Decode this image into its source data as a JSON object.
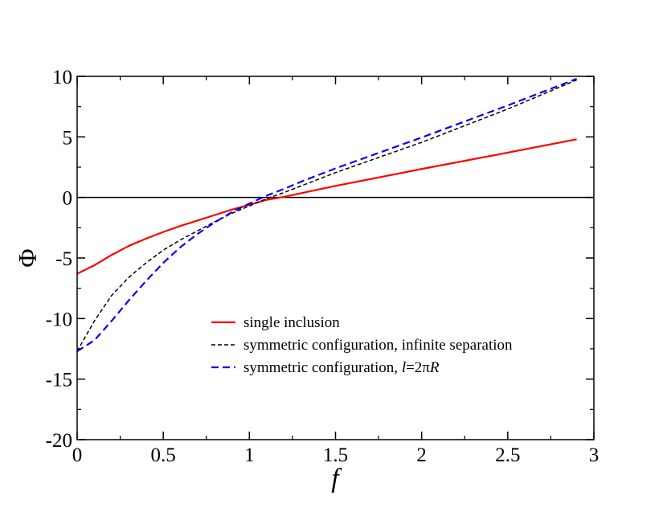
{
  "chart_data": {
    "type": "line",
    "title": "",
    "xlabel": "f",
    "ylabel": "Φ",
    "xlim": [
      0,
      3
    ],
    "ylim": [
      -20,
      10
    ],
    "xticks": [
      0,
      0.5,
      1,
      1.5,
      2,
      2.5,
      3
    ],
    "xtick_labels": [
      "0",
      "0.5",
      "1",
      "1.5",
      "2",
      "2.5",
      "3"
    ],
    "yticks": [
      10,
      5,
      0,
      -5,
      -10,
      -15,
      -20
    ],
    "ytick_labels": [
      "10",
      "5",
      "0",
      "-5",
      "-10",
      "-15",
      "-20"
    ],
    "grid": false,
    "legend_position": "lower-center",
    "reference_line": {
      "y": 0,
      "color": "#000000"
    },
    "series": [
      {
        "name": "single inclusion",
        "label_parts": [
          {
            "text": "single inclusion",
            "italic": false
          }
        ],
        "color": "#ff0000",
        "style": "solid",
        "x": [
          0,
          0.1,
          0.2,
          0.3,
          0.4,
          0.5,
          0.6,
          0.7,
          0.8,
          0.9,
          1.0,
          1.1,
          1.2,
          1.5,
          2.0,
          2.5,
          2.9
        ],
        "y": [
          -6.3,
          -5.6,
          -4.75,
          -4.0,
          -3.4,
          -2.85,
          -2.35,
          -1.9,
          -1.45,
          -1.0,
          -0.6,
          -0.2,
          0.05,
          0.95,
          2.35,
          3.7,
          4.8
        ]
      },
      {
        "name": "symmetric configuration, infinite separation",
        "label_parts": [
          {
            "text": "symmetric configuration, infinite separation",
            "italic": false
          }
        ],
        "color": "#000000",
        "style": "dashed-fine",
        "x": [
          0,
          0.1,
          0.2,
          0.3,
          0.4,
          0.5,
          0.6,
          0.7,
          0.8,
          0.9,
          1.0,
          1.1,
          1.2,
          1.3,
          1.5,
          2.0,
          2.5,
          2.9
        ],
        "y": [
          -12.7,
          -10.2,
          -8.1,
          -6.6,
          -5.4,
          -4.35,
          -3.5,
          -2.75,
          -2.0,
          -1.3,
          -0.7,
          -0.1,
          0.4,
          0.95,
          2.05,
          4.55,
          7.3,
          9.7
        ]
      },
      {
        "name": "symmetric configuration, l=2πR",
        "label_parts": [
          {
            "text": "symmetric configuration, ",
            "italic": false
          },
          {
            "text": "l",
            "italic": true
          },
          {
            "text": "=2π",
            "italic": false
          },
          {
            "text": "R",
            "italic": true
          }
        ],
        "color": "#0000ff",
        "style": "dashed",
        "x": [
          0,
          0.1,
          0.2,
          0.3,
          0.4,
          0.5,
          0.6,
          0.7,
          0.8,
          0.9,
          1.0,
          1.1,
          1.2,
          1.3,
          1.5,
          2.0,
          2.5,
          2.9
        ],
        "y": [
          -12.7,
          -11.8,
          -10.2,
          -8.5,
          -6.9,
          -5.4,
          -4.1,
          -3.0,
          -2.05,
          -1.2,
          -0.5,
          0.15,
          0.7,
          1.3,
          2.4,
          4.95,
          7.6,
          9.8
        ]
      }
    ]
  }
}
